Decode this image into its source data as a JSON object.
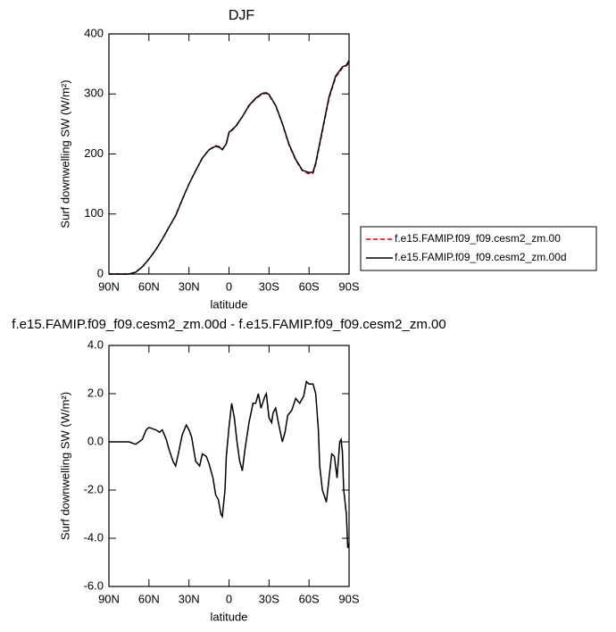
{
  "chart_data": [
    {
      "type": "line",
      "title": "DJF",
      "xlabel": "latitude",
      "ylabel": "Surf downwelling SW (W/m²)",
      "x": [
        90,
        85,
        80,
        75,
        70,
        65,
        60,
        55,
        50,
        45,
        40,
        35,
        30,
        25,
        20,
        15,
        10,
        7,
        5,
        2,
        0,
        -5,
        -10,
        -15,
        -20,
        -25,
        -28,
        -30,
        -35,
        -40,
        -45,
        -50,
        -55,
        -60,
        -63,
        -65,
        -70,
        -75,
        -80,
        -85,
        -88,
        -90
      ],
      "series": [
        {
          "name": "f.e15.FAMIP.f09_f09.cesm2_zm.00",
          "color": "#cc0000",
          "dash": true,
          "values": [
            0,
            0,
            0,
            0,
            3,
            12,
            25,
            40,
            58,
            78,
            98,
            125,
            150,
            172,
            193,
            207,
            214,
            212,
            208,
            218,
            235,
            245,
            262,
            280,
            292,
            300,
            301,
            298,
            280,
            250,
            215,
            190,
            172,
            167,
            168,
            183,
            238,
            293,
            328,
            343,
            347,
            352
          ]
        },
        {
          "name": "f.e15.FAMIP.f09_f09.cesm2_zm.00d",
          "color": "#000000",
          "dash": false,
          "values": [
            0,
            0,
            0,
            0,
            3,
            12,
            25,
            40,
            58,
            78,
            97,
            124,
            150,
            172,
            193,
            207,
            213,
            211,
            207,
            217,
            236,
            246,
            262,
            281,
            293,
            301,
            302,
            299,
            281,
            251,
            216,
            191,
            173,
            169,
            170,
            185,
            240,
            295,
            330,
            345,
            348,
            356
          ]
        }
      ],
      "xlim": [
        90,
        -90
      ],
      "xticks": [
        {
          "value": 90,
          "label": "90N"
        },
        {
          "value": 60,
          "label": "60N"
        },
        {
          "value": 30,
          "label": "30N"
        },
        0,
        {
          "value": -30,
          "label": "30S"
        },
        {
          "value": -60,
          "label": "60S"
        },
        {
          "value": -90,
          "label": "90S"
        }
      ],
      "ylim": [
        0,
        400
      ],
      "yticks": [
        0,
        100,
        200,
        300,
        400
      ],
      "legend": "right"
    },
    {
      "type": "line",
      "title": "f.e15.FAMIP.f09_f09.cesm2_zm.00d - f.e15.FAMIP.f09_f09.cesm2_zm.00",
      "xlabel": "latitude",
      "ylabel": "Surf downwelling SW (W/m²)",
      "x": [
        90,
        80,
        75,
        70,
        65,
        62,
        60,
        55,
        52,
        50,
        47,
        45,
        42,
        40,
        38,
        35,
        32,
        30,
        28,
        25,
        22,
        20,
        17,
        15,
        12,
        10,
        8,
        6,
        5,
        3,
        2,
        0,
        -2,
        -4,
        -6,
        -8,
        -10,
        -12,
        -15,
        -18,
        -20,
        -22,
        -24,
        -27,
        -28,
        -30,
        -32,
        -33,
        -35,
        -37,
        -40,
        -42,
        -44,
        -47,
        -50,
        -53,
        -56,
        -58,
        -60,
        -63,
        -65,
        -67,
        -68,
        -70,
        -73,
        -75,
        -77,
        -79,
        -81,
        -83,
        -84,
        -85,
        -86,
        -88,
        -89,
        -90
      ],
      "series": [
        {
          "color": "#000000",
          "dash": false,
          "values": [
            0,
            0,
            0,
            -0.1,
            0.1,
            0.5,
            0.6,
            0.5,
            0.4,
            0.5,
            0.1,
            -0.3,
            -0.8,
            -1.0,
            -0.5,
            0.3,
            0.7,
            0.5,
            0.2,
            -0.8,
            -1.0,
            -0.5,
            -0.6,
            -0.9,
            -1.5,
            -2.2,
            -2.4,
            -3.0,
            -3.1,
            -2.0,
            -0.6,
            0.6,
            1.6,
            1.0,
            0.0,
            -0.8,
            -1.2,
            -0.3,
            0.8,
            1.6,
            1.6,
            2.0,
            1.4,
            1.9,
            2.0,
            1.0,
            0.8,
            1.2,
            1.4,
            0.8,
            0.0,
            0.4,
            1.1,
            1.3,
            1.8,
            1.6,
            1.9,
            2.5,
            2.4,
            2.4,
            2.0,
            0.5,
            -1.0,
            -2.0,
            -2.5,
            -1.5,
            -0.5,
            -0.6,
            -1.5,
            0.0,
            0.1,
            -0.4,
            -2.0,
            -3.0,
            -4.4,
            -4.2
          ]
        }
      ],
      "xlim": [
        90,
        -90
      ],
      "xticks": [
        {
          "value": 90,
          "label": "90N"
        },
        {
          "value": 60,
          "label": "60N"
        },
        {
          "value": 30,
          "label": "30N"
        },
        0,
        {
          "value": -30,
          "label": "30S"
        },
        {
          "value": -60,
          "label": "60S"
        },
        {
          "value": -90,
          "label": "90S"
        }
      ],
      "ylim": [
        -6,
        4
      ],
      "yticks": [
        {
          "value": -6,
          "label": "-6.0"
        },
        {
          "value": -4,
          "label": "-4.0"
        },
        {
          "value": -2,
          "label": "-2.0"
        },
        {
          "value": 0,
          "label": "0.0"
        },
        {
          "value": 2,
          "label": "2.0"
        },
        {
          "value": 4,
          "label": "4.0"
        }
      ]
    }
  ]
}
